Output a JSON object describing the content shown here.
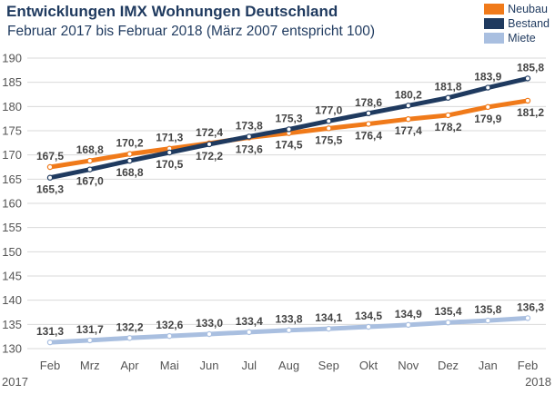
{
  "chart_data": {
    "type": "line",
    "title": "Entwicklungen IMX Wohnungen Deutschland",
    "subtitle": "Februar 2017 bis Februar 2018 (März 2007 entspricht 100)",
    "categories": [
      "Feb",
      "Mrz",
      "Apr",
      "Mai",
      "Jun",
      "Jul",
      "Aug",
      "Sep",
      "Okt",
      "Nov",
      "Dez",
      "Jan",
      "Feb"
    ],
    "category_years": [
      "2017",
      "",
      "",
      "",
      "",
      "",
      "",
      "",
      "",
      "",
      "",
      "",
      "2018"
    ],
    "yticks": [
      "130",
      "135",
      "140",
      "145",
      "150",
      "155",
      "160",
      "165",
      "170",
      "175",
      "180",
      "185",
      "190"
    ],
    "ylim": [
      130,
      190
    ],
    "grid": true,
    "legend_position": "top-right",
    "series": [
      {
        "name": "Neubau",
        "color": "#f07a1a",
        "values": [
          167.5,
          168.8,
          170.2,
          171.3,
          172.4,
          173.6,
          174.5,
          175.5,
          176.4,
          177.4,
          178.2,
          179.9,
          181.2
        ],
        "labels": [
          "167,5",
          "168,8",
          "170,2",
          "171,3",
          "172,4",
          "173,6",
          "174,5",
          "175,5",
          "176,4",
          "177,4",
          "178,2",
          "179,9",
          "181,2"
        ],
        "label_side": [
          "above",
          "above",
          "above",
          "above",
          "above",
          "below",
          "below",
          "below",
          "below",
          "below",
          "below",
          "below",
          "below"
        ]
      },
      {
        "name": "Bestand",
        "color": "#1f3a5f",
        "values": [
          165.3,
          167.0,
          168.8,
          170.5,
          172.2,
          173.8,
          175.3,
          177.0,
          178.6,
          180.2,
          181.8,
          183.9,
          185.8
        ],
        "labels": [
          "165,3",
          "167,0",
          "168,8",
          "170,5",
          "172,2",
          "173,8",
          "175,3",
          "177,0",
          "178,6",
          "180,2",
          "181,8",
          "183,9",
          "185,8"
        ],
        "label_side": [
          "below",
          "below",
          "below",
          "below",
          "below",
          "above",
          "above",
          "above",
          "above",
          "above",
          "above",
          "above",
          "above"
        ]
      },
      {
        "name": "Miete",
        "color": "#a9bfe0",
        "values": [
          131.3,
          131.7,
          132.2,
          132.6,
          133.0,
          133.4,
          133.8,
          134.1,
          134.5,
          134.9,
          135.4,
          135.8,
          136.3
        ],
        "labels": [
          "131,3",
          "131,7",
          "132,2",
          "132,6",
          "133,0",
          "133,4",
          "133,8",
          "134,1",
          "134,5",
          "134,9",
          "135,4",
          "135,8",
          "136,3"
        ],
        "label_side": [
          "above",
          "above",
          "above",
          "above",
          "above",
          "above",
          "above",
          "above",
          "above",
          "above",
          "above",
          "above",
          "above"
        ]
      }
    ]
  }
}
